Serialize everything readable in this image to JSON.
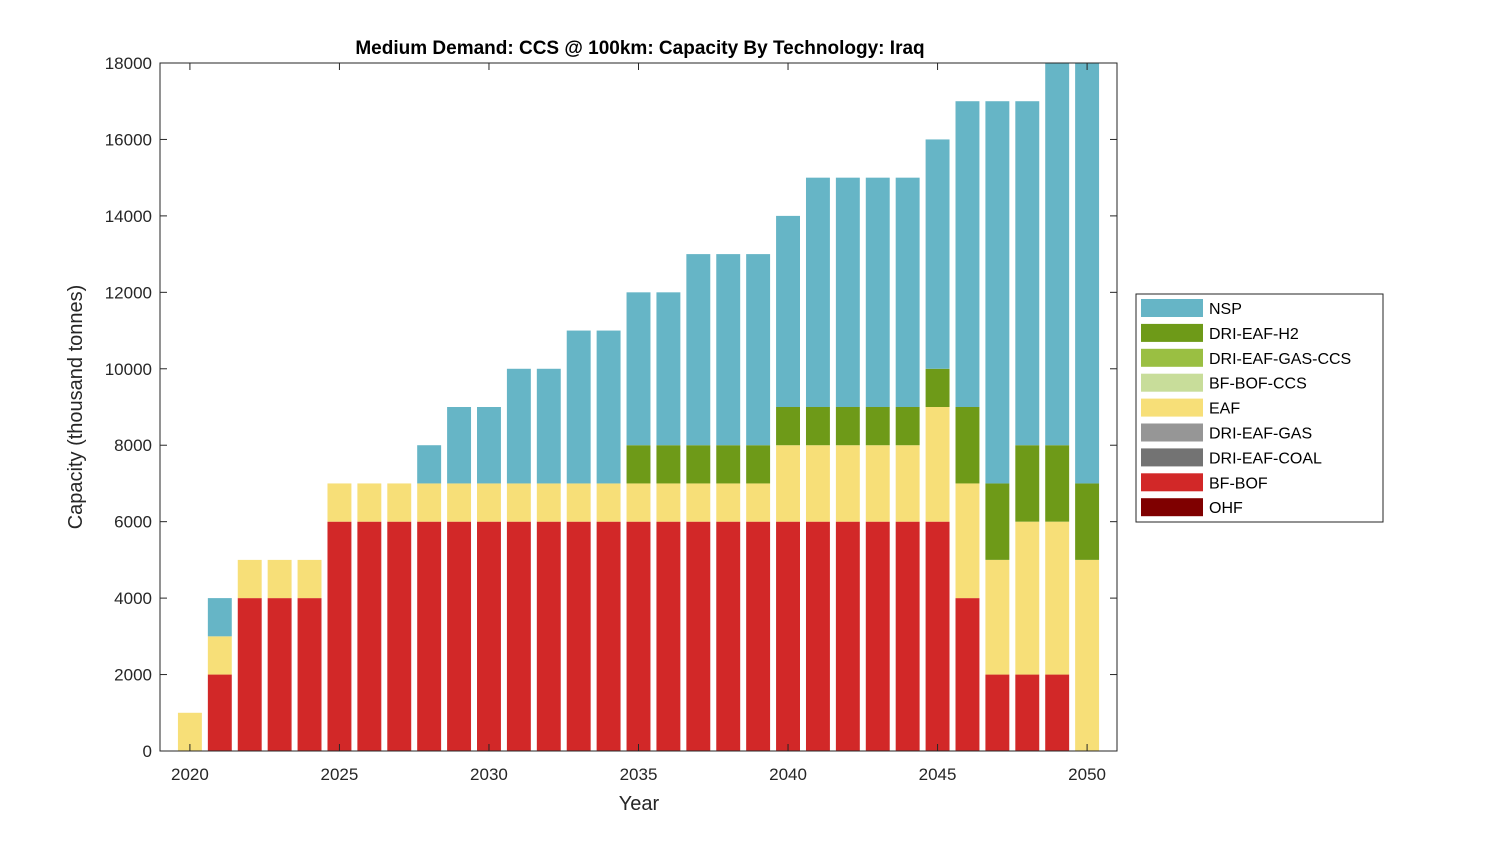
{
  "chart_data": {
    "type": "bar",
    "stacked": true,
    "title": "Medium Demand: CCS @ 100km: Capacity By Technology: Iraq",
    "xlabel": "Year",
    "ylabel": "Capacity (thousand tonnes)",
    "xlim": [
      2019,
      2051
    ],
    "ylim": [
      0,
      18000
    ],
    "xticks": [
      2020,
      2025,
      2030,
      2035,
      2040,
      2045,
      2050
    ],
    "yticks": [
      0,
      2000,
      4000,
      6000,
      8000,
      10000,
      12000,
      14000,
      16000,
      18000
    ],
    "grid": false,
    "legend_position": "outside-right",
    "categories": [
      2020,
      2021,
      2022,
      2023,
      2024,
      2025,
      2026,
      2027,
      2028,
      2029,
      2030,
      2031,
      2032,
      2033,
      2034,
      2035,
      2036,
      2037,
      2038,
      2039,
      2040,
      2041,
      2042,
      2043,
      2044,
      2045,
      2046,
      2047,
      2048,
      2049,
      2050
    ],
    "series": [
      {
        "name": "OHF",
        "color": "#7f0000",
        "values": [
          0,
          0,
          0,
          0,
          0,
          0,
          0,
          0,
          0,
          0,
          0,
          0,
          0,
          0,
          0,
          0,
          0,
          0,
          0,
          0,
          0,
          0,
          0,
          0,
          0,
          0,
          0,
          0,
          0,
          0,
          0
        ]
      },
      {
        "name": "BF-BOF",
        "color": "#d22828",
        "values": [
          0,
          2000,
          4000,
          4000,
          4000,
          6000,
          6000,
          6000,
          6000,
          6000,
          6000,
          6000,
          6000,
          6000,
          6000,
          6000,
          6000,
          6000,
          6000,
          6000,
          6000,
          6000,
          6000,
          6000,
          6000,
          6000,
          4000,
          2000,
          2000,
          2000,
          0
        ]
      },
      {
        "name": "DRI-EAF-COAL",
        "color": "#737373",
        "values": [
          0,
          0,
          0,
          0,
          0,
          0,
          0,
          0,
          0,
          0,
          0,
          0,
          0,
          0,
          0,
          0,
          0,
          0,
          0,
          0,
          0,
          0,
          0,
          0,
          0,
          0,
          0,
          0,
          0,
          0,
          0
        ]
      },
      {
        "name": "DRI-EAF-GAS",
        "color": "#969696",
        "values": [
          0,
          0,
          0,
          0,
          0,
          0,
          0,
          0,
          0,
          0,
          0,
          0,
          0,
          0,
          0,
          0,
          0,
          0,
          0,
          0,
          0,
          0,
          0,
          0,
          0,
          0,
          0,
          0,
          0,
          0,
          0
        ]
      },
      {
        "name": "EAF",
        "color": "#f7df78",
        "values": [
          1000,
          1000,
          1000,
          1000,
          1000,
          1000,
          1000,
          1000,
          1000,
          1000,
          1000,
          1000,
          1000,
          1000,
          1000,
          1000,
          1000,
          1000,
          1000,
          1000,
          2000,
          2000,
          2000,
          2000,
          2000,
          3000,
          3000,
          3000,
          4000,
          4000,
          5000
        ]
      },
      {
        "name": "BF-BOF-CCS",
        "color": "#c8dd9a",
        "values": [
          0,
          0,
          0,
          0,
          0,
          0,
          0,
          0,
          0,
          0,
          0,
          0,
          0,
          0,
          0,
          0,
          0,
          0,
          0,
          0,
          0,
          0,
          0,
          0,
          0,
          0,
          0,
          0,
          0,
          0,
          0
        ]
      },
      {
        "name": "DRI-EAF-GAS-CCS",
        "color": "#9abf42",
        "values": [
          0,
          0,
          0,
          0,
          0,
          0,
          0,
          0,
          0,
          0,
          0,
          0,
          0,
          0,
          0,
          0,
          0,
          0,
          0,
          0,
          0,
          0,
          0,
          0,
          0,
          0,
          0,
          0,
          0,
          0,
          0
        ]
      },
      {
        "name": "DRI-EAF-H2",
        "color": "#6e9a18",
        "values": [
          0,
          0,
          0,
          0,
          0,
          0,
          0,
          0,
          0,
          0,
          0,
          0,
          0,
          0,
          0,
          1000,
          1000,
          1000,
          1000,
          1000,
          1000,
          1000,
          1000,
          1000,
          1000,
          1000,
          2000,
          2000,
          2000,
          2000,
          2000
        ]
      },
      {
        "name": "NSP",
        "color": "#66b5c6",
        "values": [
          0,
          1000,
          0,
          0,
          0,
          0,
          0,
          0,
          1000,
          2000,
          2000,
          3000,
          3000,
          4000,
          4000,
          4000,
          4000,
          5000,
          5000,
          5000,
          5000,
          6000,
          6000,
          6000,
          6000,
          6000,
          8000,
          10000,
          9000,
          10000,
          11000
        ]
      }
    ],
    "legend_order": [
      "NSP",
      "DRI-EAF-H2",
      "DRI-EAF-GAS-CCS",
      "BF-BOF-CCS",
      "EAF",
      "DRI-EAF-GAS",
      "DRI-EAF-COAL",
      "BF-BOF",
      "OHF"
    ]
  }
}
